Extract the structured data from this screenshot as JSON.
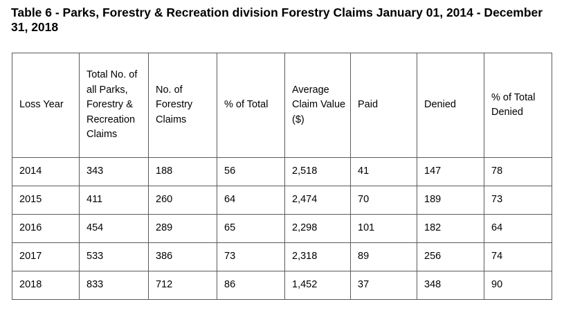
{
  "title": "Table 6 - Parks, Forestry & Recreation division Forestry Claims January 01, 2014 - December 31, 2018",
  "headers": [
    "Loss Year",
    "Total No. of all Parks, Forestry & Recreation Claims",
    "No. of Forestry Claims",
    "% of Total",
    "Average Claim Value ($)",
    "Paid",
    "Denied",
    "% of Total Denied"
  ],
  "rows": [
    [
      "2014",
      "343",
      "188",
      "56",
      "2,518",
      "41",
      "147",
      "78"
    ],
    [
      "2015",
      "411",
      "260",
      "64",
      "2,474",
      "70",
      "189",
      "73"
    ],
    [
      "2016",
      "454",
      "289",
      "65",
      "2,298",
      "101",
      "182",
      "64"
    ],
    [
      "2017",
      "533",
      "386",
      "73",
      "2,318",
      "89",
      "256",
      "74"
    ],
    [
      "2018",
      "833",
      "712",
      "86",
      "1,452",
      "37",
      "348",
      "90"
    ]
  ]
}
